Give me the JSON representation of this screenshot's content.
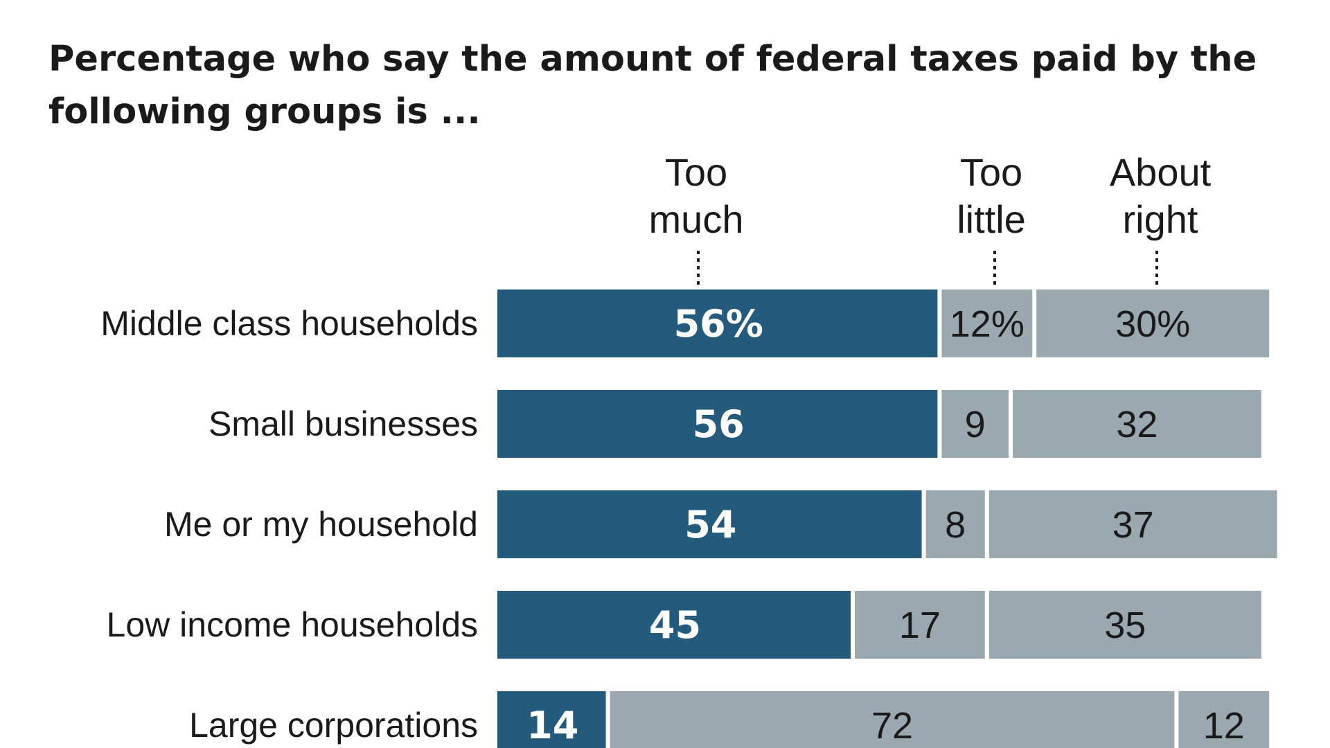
{
  "chart_data": {
    "type": "bar",
    "orientation": "horizontal",
    "stacked": true,
    "title": "Percentage who say the amount of federal taxes paid by the following groups is ...",
    "categories": [
      "Middle class households",
      "Small businesses",
      "Me or my household",
      "Low income households",
      "Large corporations"
    ],
    "series": [
      {
        "name": "Too much",
        "color": "#245b7d",
        "values": [
          56,
          56,
          54,
          45,
          14
        ],
        "labels": [
          "56%",
          "56",
          "54",
          "45",
          "14"
        ]
      },
      {
        "name": "Too little",
        "color": "#9aa8b0",
        "values": [
          12,
          9,
          8,
          17,
          72
        ],
        "labels": [
          "12%",
          "9",
          "8",
          "17",
          "72"
        ]
      },
      {
        "name": "About right",
        "color": "#9aa8b0",
        "values": [
          30,
          32,
          37,
          35,
          12
        ],
        "labels": [
          "30%",
          "32",
          "37",
          "35",
          "12"
        ]
      }
    ],
    "series_headers": [
      [
        "Too",
        "much"
      ],
      [
        "Too",
        "little"
      ],
      [
        "About",
        "right"
      ]
    ],
    "xlim": [
      0,
      100
    ],
    "grid": false,
    "legend": "top"
  }
}
